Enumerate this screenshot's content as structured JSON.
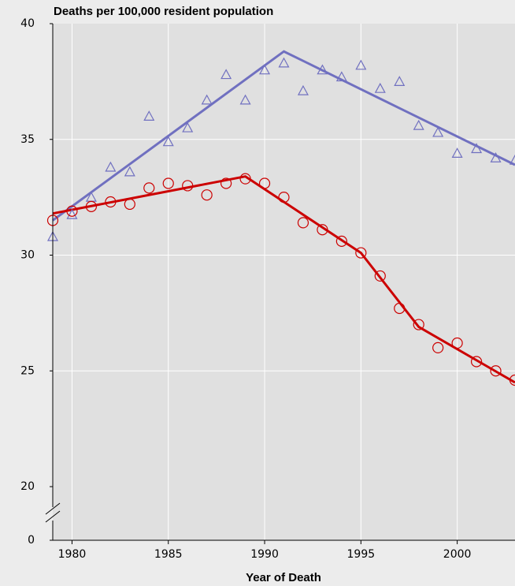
{
  "chart_data": {
    "type": "scatter",
    "subtitle": "Deaths per 100,000 resident population",
    "x_label": "Year of Death",
    "x": [
      1979,
      1980,
      1981,
      1982,
      1983,
      1984,
      1985,
      1986,
      1987,
      1988,
      1989,
      1990,
      1991,
      1992,
      1993,
      1994,
      1995,
      1996,
      1997,
      1998,
      1999,
      2000,
      2001,
      2002,
      2003
    ],
    "series": [
      {
        "color": "#7070c0",
        "marker": "triangle",
        "values": [
          30.8,
          31.75,
          32.5,
          33.8,
          33.6,
          36.0,
          34.9,
          35.5,
          36.7,
          37.8,
          36.7,
          38.0,
          38.3,
          37.1,
          38.0,
          37.7,
          38.2,
          37.2,
          37.5,
          35.6,
          35.3,
          34.4,
          34.6,
          34.2,
          34.1
        ]
      },
      {
        "color": "#cc0000",
        "marker": "circle",
        "values": [
          31.5,
          31.9,
          32.1,
          32.3,
          32.2,
          32.9,
          33.1,
          33.0,
          32.6,
          33.1,
          33.3,
          33.1,
          32.5,
          31.4,
          31.1,
          30.6,
          30.1,
          29.1,
          27.7,
          27.0,
          26.0,
          26.2,
          25.4,
          25.0,
          24.6
        ]
      }
    ],
    "fits": [
      {
        "color": "#7070c0",
        "x": [
          1979,
          1991,
          2003
        ],
        "values": [
          31.5,
          38.8,
          33.9
        ]
      },
      {
        "color": "#cc0000",
        "x": [
          1979,
          1989,
          1995,
          1998,
          2003
        ],
        "values": [
          31.8,
          33.4,
          30.1,
          26.9,
          24.5
        ]
      }
    ],
    "xlim": [
      1979,
      2003
    ],
    "xticks": [
      1980,
      1985,
      1990,
      1995,
      2000
    ],
    "ylim": [
      0,
      40
    ],
    "yticks": [
      0,
      20,
      25,
      30,
      35,
      40
    ],
    "axis_break": true,
    "grid": true
  }
}
